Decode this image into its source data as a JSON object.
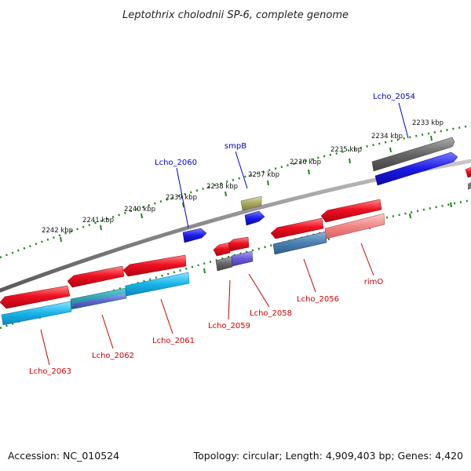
{
  "title": "Leptothrix cholodnii SP-6, complete genome",
  "footer": {
    "accession": "Accession: NC_010524",
    "summary": "Topology: circular; Length: 4,909,403 bp; Genes: 4,420"
  },
  "colors": {
    "backbone": "#808080",
    "forward_cds": "#e8101c",
    "reverse_cds": "#18b4e8",
    "blue_feature": "#1a1ae6",
    "grey_feature": "#666666",
    "olive_feature": "#a8a860",
    "label_forward": "#0000cc",
    "label_reverse": "#cc0000",
    "ruler": "#1a8a1a"
  },
  "ruler_ticks": [
    {
      "label": "2242 kbp"
    },
    {
      "label": "2241 kbp"
    },
    {
      "label": "2240 kbp"
    },
    {
      "label": "2239 kbp"
    },
    {
      "label": "2238 kbp"
    },
    {
      "label": "2237 kbp"
    },
    {
      "label": "2236 kbp"
    },
    {
      "label": "2235 kbp"
    },
    {
      "label": "2234 kbp"
    },
    {
      "label": "2233 kbp"
    }
  ],
  "gene_labels": [
    {
      "name": "Lcho_2054",
      "strand": "forward"
    },
    {
      "name": "smpB",
      "strand": "forward"
    },
    {
      "name": "Lcho_2060",
      "strand": "forward"
    },
    {
      "name": "rimO",
      "strand": "reverse"
    },
    {
      "name": "Lcho_2056",
      "strand": "reverse"
    },
    {
      "name": "Lcho_2058",
      "strand": "reverse"
    },
    {
      "name": "Lcho_2059",
      "strand": "reverse"
    },
    {
      "name": "Lcho_2061",
      "strand": "reverse"
    },
    {
      "name": "Lcho_2062",
      "strand": "reverse"
    },
    {
      "name": "Lcho_2063",
      "strand": "reverse"
    }
  ]
}
